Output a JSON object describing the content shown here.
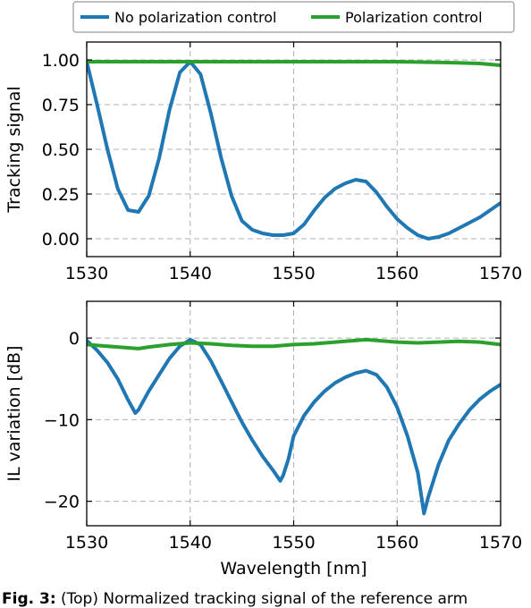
{
  "colors": {
    "no_control": "#1f77b4",
    "control": "#2ca02c",
    "grid": "#b0b0b0"
  },
  "legend": {
    "entries": [
      "No polarization control",
      "Polarization control"
    ],
    "placement": "top-center"
  },
  "caption": {
    "label": "Fig. 3:",
    "text": " (Top) Normalized tracking signal of the reference arm"
  },
  "chart_data": [
    {
      "type": "line",
      "title": "",
      "xlabel": "",
      "ylabel": "Tracking signal",
      "xlim": [
        1530,
        1570
      ],
      "ylim": [
        -0.1,
        1.1
      ],
      "grid": true,
      "xticks": [
        1530,
        1540,
        1550,
        1560,
        1570
      ],
      "xtick_labels": [
        "1530",
        "1540",
        "1550",
        "1560",
        "1570"
      ],
      "yticks": [
        0,
        0.25,
        0.5,
        0.75,
        1.0
      ],
      "ytick_labels": [
        "0.00",
        "0.25",
        "0.50",
        "0.75",
        "1.00"
      ],
      "series": [
        {
          "name": "No polarization control",
          "color": "#1f77b4",
          "x": [
            1530,
            1531,
            1532,
            1533,
            1534,
            1535,
            1536,
            1537,
            1538,
            1539,
            1540,
            1541,
            1542,
            1543,
            1544,
            1545,
            1546,
            1547,
            1548,
            1549,
            1550,
            1551,
            1552,
            1553,
            1554,
            1555,
            1556,
            1557,
            1558,
            1559,
            1560,
            1561,
            1562,
            1563,
            1564,
            1565,
            1566,
            1567,
            1568,
            1569,
            1570
          ],
          "y": [
            0.99,
            0.75,
            0.5,
            0.28,
            0.16,
            0.15,
            0.24,
            0.45,
            0.72,
            0.93,
            0.99,
            0.92,
            0.7,
            0.45,
            0.24,
            0.1,
            0.05,
            0.03,
            0.02,
            0.02,
            0.03,
            0.08,
            0.16,
            0.23,
            0.28,
            0.31,
            0.33,
            0.32,
            0.26,
            0.18,
            0.11,
            0.06,
            0.02,
            0.0,
            0.01,
            0.03,
            0.06,
            0.09,
            0.12,
            0.16,
            0.2
          ]
        },
        {
          "name": "Polarization control",
          "color": "#2ca02c",
          "x": [
            1530,
            1535,
            1540,
            1545,
            1550,
            1555,
            1560,
            1565,
            1568,
            1570
          ],
          "y": [
            0.99,
            0.99,
            0.99,
            0.99,
            0.99,
            0.99,
            0.99,
            0.985,
            0.98,
            0.97
          ]
        }
      ]
    },
    {
      "type": "line",
      "title": "",
      "xlabel": "Wavelength [nm]",
      "ylabel": "IL variation [dB]",
      "xlim": [
        1530,
        1570
      ],
      "ylim": [
        -23,
        4.5
      ],
      "grid": true,
      "xticks": [
        1530,
        1540,
        1550,
        1560,
        1570
      ],
      "xtick_labels": [
        "1530",
        "1540",
        "1550",
        "1560",
        "1570"
      ],
      "yticks": [
        0,
        -10,
        -20
      ],
      "ytick_labels": [
        "0",
        "−10",
        "−20"
      ],
      "series": [
        {
          "name": "No polarization control",
          "color": "#1f77b4",
          "x": [
            1530,
            1531,
            1532,
            1533,
            1534,
            1534.7,
            1535,
            1536,
            1537,
            1538,
            1539,
            1540,
            1541,
            1542,
            1543,
            1544,
            1545,
            1546,
            1547,
            1548,
            1548.7,
            1549,
            1549.5,
            1550,
            1551,
            1552,
            1553,
            1554,
            1555,
            1556,
            1557,
            1558,
            1559,
            1560,
            1561,
            1562,
            1562.6,
            1563,
            1564,
            1565,
            1566,
            1567,
            1568,
            1569,
            1570
          ],
          "y": [
            -0.3,
            -1.5,
            -3.0,
            -5.0,
            -7.6,
            -9.2,
            -8.8,
            -6.5,
            -4.5,
            -2.5,
            -1.0,
            -0.2,
            -0.8,
            -2.8,
            -5.3,
            -7.8,
            -10.3,
            -12.5,
            -14.5,
            -16.2,
            -17.5,
            -16.8,
            -14.8,
            -12.0,
            -9.5,
            -7.8,
            -6.5,
            -5.5,
            -4.8,
            -4.3,
            -4.0,
            -4.5,
            -6.0,
            -8.5,
            -12.0,
            -16.5,
            -21.5,
            -19.5,
            -15.5,
            -12.5,
            -10.5,
            -8.8,
            -7.5,
            -6.5,
            -5.7
          ]
        },
        {
          "name": "Polarization control",
          "color": "#2ca02c",
          "x": [
            1530,
            1532,
            1534,
            1535,
            1536,
            1538,
            1540,
            1542,
            1544,
            1546,
            1548,
            1550,
            1552,
            1554,
            1556,
            1557,
            1558,
            1560,
            1562,
            1564,
            1566,
            1568,
            1570
          ],
          "y": [
            -0.8,
            -1.0,
            -1.2,
            -1.3,
            -1.1,
            -0.8,
            -0.6,
            -0.7,
            -0.9,
            -1.0,
            -1.0,
            -0.8,
            -0.7,
            -0.5,
            -0.3,
            -0.2,
            -0.3,
            -0.5,
            -0.6,
            -0.5,
            -0.4,
            -0.5,
            -0.8
          ]
        }
      ]
    }
  ]
}
